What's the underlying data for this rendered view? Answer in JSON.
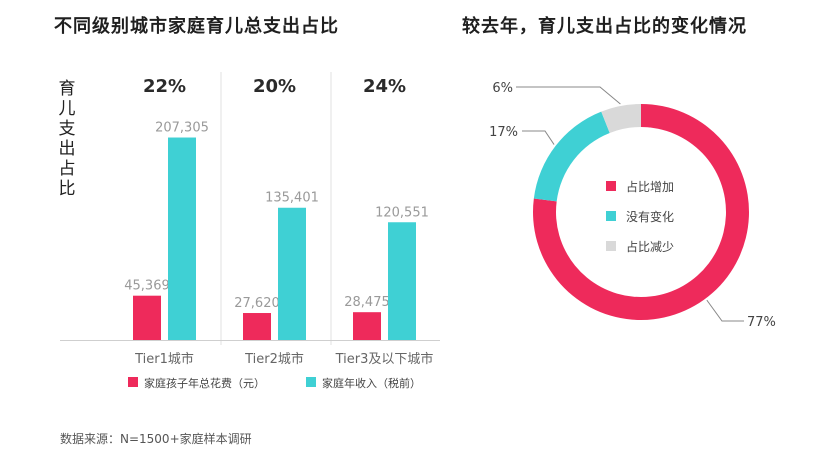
{
  "chart_data": [
    {
      "type": "bar",
      "title": "不同级别城市家庭育儿总支出占比",
      "ylabel": "育儿支出占比",
      "categories": [
        "Tier1城市",
        "Tier2城市",
        "Tier3及以下城市"
      ],
      "ratio_labels": [
        "22%",
        "20%",
        "24%"
      ],
      "series": [
        {
          "name": "家庭孩子年总花费（元）",
          "color": "#ee2a5b",
          "values": [
            45369,
            27620,
            28475
          ],
          "labels": [
            "45,369",
            "27,620",
            "28,475"
          ]
        },
        {
          "name": "家庭年收入（税前）",
          "color": "#3fd0d4",
          "values": [
            207305,
            135401,
            120551
          ],
          "labels": [
            "207,305",
            "135,401",
            "120,551"
          ]
        }
      ],
      "ylim": [
        0,
        215000
      ],
      "grid": false,
      "legend_position": "bottom"
    },
    {
      "type": "pie",
      "title": "较去年，育儿支出占比的变化情况",
      "slices": [
        {
          "name": "占比增加",
          "value": 77,
          "label": "77%",
          "color": "#ee2a5b"
        },
        {
          "name": "没有变化",
          "value": 17,
          "label": "17%",
          "color": "#3fd0d4"
        },
        {
          "name": "占比减少",
          "value": 6,
          "label": "6%",
          "color": "#d9d9d9"
        }
      ],
      "donut": true,
      "legend_position": "center"
    }
  ],
  "source_note": "数据来源：N=1500+家庭样本调研"
}
